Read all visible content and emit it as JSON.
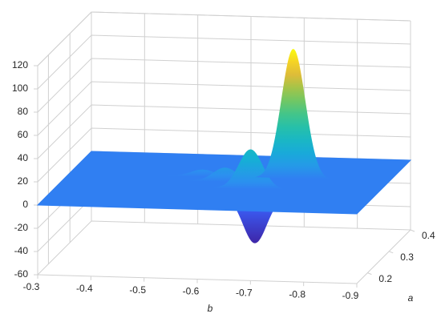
{
  "chart_data": {
    "type": "surface",
    "xlabel": "b",
    "ylabel": "a",
    "xlim": [
      -0.3,
      -0.9
    ],
    "xticks": [
      -0.3,
      -0.4,
      -0.5,
      -0.6,
      -0.7,
      -0.8,
      -0.9
    ],
    "ylim": [
      0.15,
      0.4
    ],
    "yticks": [
      0.2,
      0.3,
      0.4
    ],
    "zlim": [
      -60,
      120
    ],
    "zticks": [
      -60,
      -40,
      -20,
      0,
      20,
      40,
      60,
      80,
      100,
      120
    ],
    "grid": true,
    "colormap": "parula",
    "peaks": {
      "b": [
        -0.72,
        -0.66,
        -0.68,
        -0.6,
        -0.55
      ],
      "a": [
        0.3,
        0.25,
        0.22,
        0.28,
        0.3
      ],
      "z": [
        112,
        34,
        -41,
        12,
        6
      ]
    }
  }
}
